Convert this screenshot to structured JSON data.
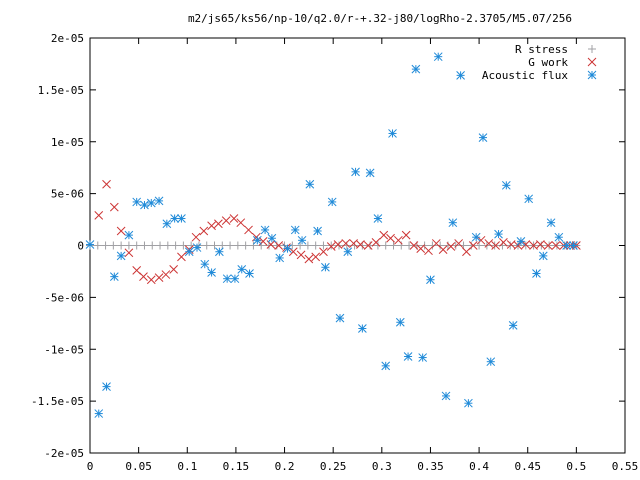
{
  "chart_data": {
    "type": "scatter",
    "title": "m2/js65/ks56/np-10/q2.0/r-+.32-j80/logRho-2.3705/M5.07/256",
    "xlabel": "",
    "ylabel": "",
    "xlim": [
      0,
      0.55
    ],
    "ylim": [
      -2e-05,
      2e-05
    ],
    "x_ticks": [
      "0",
      "0.05",
      "0.1",
      "0.15",
      "0.2",
      "0.25",
      "0.3",
      "0.35",
      "0.4",
      "0.45",
      "0.5",
      "0.55"
    ],
    "y_ticks": [
      "2e-05",
      "1.5e-05",
      "1e-05",
      "5e-06",
      "0",
      "-5e-06",
      "-1e-05",
      "-1.5e-05",
      "-2e-05"
    ],
    "grid": false,
    "legend_position": "top-right",
    "series": [
      {
        "name": "R stress",
        "marker": "plus",
        "color": "#a0a0a4",
        "x": [
          0.0,
          0.008,
          0.016,
          0.024,
          0.032,
          0.04,
          0.048,
          0.056,
          0.064,
          0.072,
          0.08,
          0.088,
          0.096,
          0.104,
          0.112,
          0.12,
          0.128,
          0.136,
          0.144,
          0.152,
          0.16,
          0.168,
          0.176,
          0.184,
          0.192,
          0.2,
          0.208,
          0.216,
          0.224,
          0.232,
          0.24,
          0.248,
          0.256,
          0.264,
          0.272,
          0.28,
          0.288,
          0.296,
          0.304,
          0.312,
          0.32,
          0.328,
          0.336,
          0.344,
          0.352,
          0.36,
          0.368,
          0.376,
          0.384,
          0.392,
          0.4,
          0.408,
          0.416,
          0.424,
          0.432,
          0.44,
          0.448,
          0.456,
          0.464,
          0.472,
          0.48,
          0.488,
          0.496,
          0.5
        ],
        "y": [
          0,
          0,
          0,
          0,
          0,
          0,
          0,
          0,
          0,
          0,
          0,
          0,
          0,
          0,
          0,
          0,
          0,
          0,
          0,
          0,
          0,
          0,
          0,
          0,
          0,
          0,
          0,
          0,
          0,
          0,
          0,
          0,
          0,
          0,
          0,
          0,
          0,
          0,
          0,
          0,
          0,
          0,
          0,
          0,
          0,
          0,
          0,
          0,
          0,
          0,
          0,
          0,
          0,
          0,
          0,
          0,
          0,
          0,
          0,
          0,
          0,
          0,
          0,
          0
        ]
      },
      {
        "name": "G work",
        "marker": "cross",
        "color": "#cc3333",
        "x": [
          0.009,
          0.017,
          0.025,
          0.032,
          0.04,
          0.048,
          0.055,
          0.063,
          0.071,
          0.078,
          0.086,
          0.094,
          0.102,
          0.109,
          0.117,
          0.125,
          0.132,
          0.14,
          0.148,
          0.155,
          0.163,
          0.171,
          0.178,
          0.186,
          0.194,
          0.202,
          0.209,
          0.217,
          0.225,
          0.232,
          0.24,
          0.248,
          0.255,
          0.263,
          0.271,
          0.278,
          0.286,
          0.294,
          0.302,
          0.309,
          0.317,
          0.325,
          0.333,
          0.34,
          0.348,
          0.356,
          0.363,
          0.371,
          0.379,
          0.387,
          0.394,
          0.402,
          0.41,
          0.417,
          0.425,
          0.433,
          0.44,
          0.448,
          0.456,
          0.463,
          0.471,
          0.479,
          0.487,
          0.494,
          0.5
        ],
        "y": [
          2.9e-06,
          5.9e-06,
          3.7e-06,
          1.4e-06,
          -7e-07,
          -2.4e-06,
          -3e-06,
          -3.3e-06,
          -3.1e-06,
          -2.8e-06,
          -2.3e-06,
          -1.1e-06,
          -4e-07,
          8e-07,
          1.4e-06,
          1.9e-06,
          2.1e-06,
          2.4e-06,
          2.6e-06,
          2.2e-06,
          1.5e-06,
          8e-07,
          4e-07,
          1e-07,
          0,
          -2e-07,
          -6e-07,
          -9e-07,
          -1.3e-06,
          -1.1e-06,
          -6e-07,
          -1e-07,
          1e-07,
          2e-07,
          2e-07,
          1e-07,
          0,
          3e-07,
          1e-06,
          7e-07,
          5e-07,
          1e-06,
          0,
          -3e-07,
          -5e-07,
          2e-07,
          -4e-07,
          -1e-07,
          2e-07,
          -6e-07,
          0,
          5e-07,
          2e-07,
          0,
          3e-07,
          1e-07,
          0,
          1e-07,
          0,
          1e-07,
          0,
          0,
          0,
          0,
          0
        ]
      },
      {
        "name": "Acoustic flux",
        "marker": "star",
        "color": "#1f8ad8",
        "x": [
          0.0,
          0.009,
          0.017,
          0.025,
          0.032,
          0.04,
          0.048,
          0.056,
          0.063,
          0.071,
          0.079,
          0.087,
          0.094,
          0.102,
          0.11,
          0.118,
          0.125,
          0.133,
          0.141,
          0.149,
          0.156,
          0.164,
          0.172,
          0.18,
          0.187,
          0.195,
          0.203,
          0.211,
          0.218,
          0.226,
          0.234,
          0.242,
          0.249,
          0.257,
          0.265,
          0.273,
          0.28,
          0.288,
          0.296,
          0.304,
          0.311,
          0.319,
          0.327,
          0.335,
          0.342,
          0.35,
          0.358,
          0.366,
          0.373,
          0.381,
          0.389,
          0.397,
          0.404,
          0.412,
          0.42,
          0.428,
          0.435,
          0.443,
          0.451,
          0.459,
          0.466,
          0.474,
          0.482,
          0.49,
          0.497
        ],
        "y": [
          1e-07,
          -1.62e-05,
          -1.36e-05,
          -3e-06,
          -1e-06,
          1e-06,
          4.2e-06,
          3.9e-06,
          4.1e-06,
          4.3e-06,
          2.1e-06,
          2.6e-06,
          2.6e-06,
          -6e-07,
          -2e-07,
          -1.8e-06,
          -2.6e-06,
          -6e-07,
          -3.2e-06,
          -3.2e-06,
          -2.3e-06,
          -2.7e-06,
          5e-07,
          1.5e-06,
          7e-07,
          -1.2e-06,
          -3e-07,
          1.5e-06,
          5e-07,
          5.9e-06,
          1.4e-06,
          -2.1e-06,
          4.2e-06,
          -7e-06,
          -6e-07,
          7.1e-06,
          -8e-06,
          7e-06,
          2.6e-06,
          -1.16e-05,
          1.08e-05,
          -7.4e-06,
          -1.07e-05,
          1.7e-05,
          -1.08e-05,
          -3.3e-06,
          1.82e-05,
          -1.45e-05,
          2.2e-06,
          1.64e-05,
          -1.52e-05,
          8e-07,
          1.04e-05,
          -1.12e-05,
          1.1e-06,
          5.8e-06,
          -7.7e-06,
          4e-07,
          4.5e-06,
          -2.7e-06,
          -1e-06,
          2.2e-06,
          8e-07,
          0,
          0
        ]
      }
    ]
  }
}
